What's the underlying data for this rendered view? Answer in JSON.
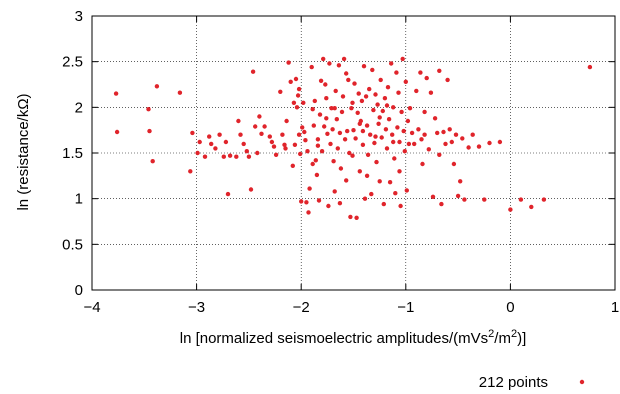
{
  "chart_data": {
    "type": "scatter",
    "title": "",
    "xlabel_prefix": "ln [normalized seismoelectric amplitudes/(mVs",
    "xlabel_sup1": "2",
    "xlabel_mid": "/m",
    "xlabel_sup2": "2",
    "xlabel_suffix": ")]",
    "ylabel": "ln (resistance/kΩ)",
    "xlim": [
      -4,
      1
    ],
    "ylim": [
      0,
      3
    ],
    "xticks": [
      -4,
      -3,
      -2,
      -1,
      0,
      1
    ],
    "yticks": [
      0,
      0.5,
      1,
      1.5,
      2,
      2.5,
      3
    ],
    "xtick_labels": [
      "−4",
      "−3",
      "−2",
      "−1",
      "0",
      "1"
    ],
    "ytick_labels": [
      "0",
      "0.5",
      "1",
      "1.5",
      "2",
      "2.5",
      "3"
    ],
    "grid": "dotted",
    "legend_position": "bottom-right",
    "marker_color": "#e0242b",
    "series": [
      {
        "name": "212 points",
        "points": [
          [
            -3.77,
            2.15
          ],
          [
            -3.76,
            1.73
          ],
          [
            -3.46,
            1.98
          ],
          [
            -3.42,
            1.41
          ],
          [
            -3.38,
            2.23
          ],
          [
            -3.45,
            1.74
          ],
          [
            -3.16,
            2.16
          ],
          [
            -3.06,
            1.3
          ],
          [
            -3.04,
            1.72
          ],
          [
            -2.99,
            1.5
          ],
          [
            -2.92,
            1.46
          ],
          [
            -2.88,
            1.68
          ],
          [
            -2.86,
            1.6
          ],
          [
            -2.82,
            1.55
          ],
          [
            -2.78,
            1.7
          ],
          [
            -2.74,
            1.46
          ],
          [
            -2.72,
            1.62
          ],
          [
            -2.7,
            1.05
          ],
          [
            -2.68,
            1.47
          ],
          [
            -2.62,
            1.46
          ],
          [
            -2.58,
            1.7
          ],
          [
            -2.55,
            1.6
          ],
          [
            -2.5,
            1.46
          ],
          [
            -2.48,
            1.1
          ],
          [
            -2.46,
            2.39
          ],
          [
            -2.44,
            1.79
          ],
          [
            -2.42,
            1.5
          ],
          [
            -2.4,
            1.9
          ],
          [
            -2.38,
            1.71
          ],
          [
            -2.3,
            1.68
          ],
          [
            -2.28,
            1.62
          ],
          [
            -2.26,
            1.57
          ],
          [
            -2.24,
            1.48
          ],
          [
            -2.2,
            2.17
          ],
          [
            -2.18,
            1.7
          ],
          [
            -2.16,
            1.59
          ],
          [
            -2.14,
            1.85
          ],
          [
            -2.12,
            2.49
          ],
          [
            -2.1,
            2.28
          ],
          [
            -2.08,
            1.36
          ],
          [
            -2.07,
            2.05
          ],
          [
            -2.06,
            1.59
          ],
          [
            -2.05,
            2.31
          ],
          [
            -2.04,
            2.0
          ],
          [
            -2.03,
            2.13
          ],
          [
            -2.02,
            1.7
          ],
          [
            -2.01,
            1.49
          ],
          [
            -2.0,
            0.97
          ],
          [
            -1.99,
            1.78
          ],
          [
            -1.98,
            2.05
          ],
          [
            -1.97,
            1.73
          ],
          [
            -1.96,
            1.64
          ],
          [
            -1.95,
            0.96
          ],
          [
            -1.94,
            1.52
          ],
          [
            -1.92,
            1.11
          ],
          [
            -1.9,
            2.44
          ],
          [
            -1.89,
            1.98
          ],
          [
            -1.88,
            1.8
          ],
          [
            -1.87,
            2.07
          ],
          [
            -1.86,
            1.42
          ],
          [
            -1.85,
            1.26
          ],
          [
            -1.84,
            1.65
          ],
          [
            -1.83,
            0.98
          ],
          [
            -1.82,
            1.92
          ],
          [
            -1.81,
            2.29
          ],
          [
            -1.8,
            1.52
          ],
          [
            -1.79,
            2.53
          ],
          [
            -1.78,
            1.79
          ],
          [
            -1.77,
            2.25
          ],
          [
            -1.76,
            2.1
          ],
          [
            -1.75,
            1.71
          ],
          [
            -1.74,
            0.92
          ],
          [
            -1.73,
            2.48
          ],
          [
            -1.72,
            1.6
          ],
          [
            -1.71,
            1.99
          ],
          [
            -1.7,
            1.76
          ],
          [
            -1.69,
            1.41
          ],
          [
            -1.68,
            1.08
          ],
          [
            -1.67,
            2.18
          ],
          [
            -1.66,
            1.87
          ],
          [
            -1.65,
            1.55
          ],
          [
            -1.64,
            2.46
          ],
          [
            -1.63,
            1.72
          ],
          [
            -1.62,
            1.33
          ],
          [
            -1.61,
            1.95
          ],
          [
            -1.6,
            2.12
          ],
          [
            -1.59,
            2.53
          ],
          [
            -1.58,
            1.65
          ],
          [
            -1.57,
            1.2
          ],
          [
            -1.56,
            1.74
          ],
          [
            -1.55,
            2.3
          ],
          [
            -1.54,
            1.5
          ],
          [
            -1.53,
            0.8
          ],
          [
            -1.52,
            1.99
          ],
          [
            -1.51,
            2.05
          ],
          [
            -1.5,
            1.75
          ],
          [
            -1.49,
            2.26
          ],
          [
            -1.48,
            1.66
          ],
          [
            -1.47,
            0.79
          ],
          [
            -1.46,
            1.94
          ],
          [
            -1.45,
            2.15
          ],
          [
            -1.44,
            1.3
          ],
          [
            -1.43,
            1.85
          ],
          [
            -1.42,
            2.07
          ],
          [
            -1.41,
            1.59
          ],
          [
            -1.4,
            2.45
          ],
          [
            -1.39,
            1.0
          ],
          [
            -1.38,
            2.12
          ],
          [
            -1.37,
            1.8
          ],
          [
            -1.36,
            1.48
          ],
          [
            -1.35,
            2.2
          ],
          [
            -1.34,
            1.7
          ],
          [
            -1.33,
            1.05
          ],
          [
            -1.32,
            2.41
          ],
          [
            -1.31,
            1.97
          ],
          [
            -1.3,
            1.61
          ],
          [
            -1.29,
            2.14
          ],
          [
            -1.28,
            1.4
          ],
          [
            -1.27,
            2.03
          ],
          [
            -1.26,
            1.82
          ],
          [
            -1.25,
            1.19
          ],
          [
            -1.24,
            2.3
          ],
          [
            -1.23,
            1.67
          ],
          [
            -1.22,
            1.96
          ],
          [
            -1.21,
            0.94
          ],
          [
            -1.2,
            2.1
          ],
          [
            -1.19,
            1.76
          ],
          [
            -1.18,
            1.55
          ],
          [
            -1.17,
            2.22
          ],
          [
            -1.16,
            1.87
          ],
          [
            -1.15,
            1.18
          ],
          [
            -1.14,
            2.48
          ],
          [
            -1.13,
            1.7
          ],
          [
            -1.12,
            2.0
          ],
          [
            -1.11,
            1.44
          ],
          [
            -1.1,
            1.06
          ],
          [
            -1.09,
            2.38
          ],
          [
            -1.08,
            1.78
          ],
          [
            -1.07,
            2.16
          ],
          [
            -1.06,
            1.62
          ],
          [
            -1.05,
            0.92
          ],
          [
            -1.04,
            1.95
          ],
          [
            -1.03,
            2.53
          ],
          [
            -1.02,
            1.74
          ],
          [
            -1.01,
            1.52
          ],
          [
            -1.0,
            2.28
          ],
          [
            -0.99,
            1.09
          ],
          [
            -0.98,
            1.85
          ],
          [
            -0.96,
            1.99
          ],
          [
            -0.94,
            1.72
          ],
          [
            -0.92,
            1.6
          ],
          [
            -0.9,
            2.18
          ],
          [
            -0.88,
            1.76
          ],
          [
            -0.86,
            2.38
          ],
          [
            -0.84,
            1.38
          ],
          [
            -0.82,
            1.95
          ],
          [
            -0.8,
            2.32
          ],
          [
            -0.78,
            1.54
          ],
          [
            -0.76,
            2.16
          ],
          [
            -0.74,
            1.02
          ],
          [
            -0.72,
            1.88
          ],
          [
            -0.7,
            1.72
          ],
          [
            -0.68,
            2.4
          ],
          [
            -0.66,
            0.94
          ],
          [
            -0.64,
            1.73
          ],
          [
            -0.62,
            1.6
          ],
          [
            -0.6,
            2.3
          ],
          [
            -0.58,
            1.76
          ],
          [
            -0.56,
            1.62
          ],
          [
            -0.54,
            1.38
          ],
          [
            -0.52,
            1.7
          ],
          [
            -0.5,
            1.03
          ],
          [
            -0.48,
            1.19
          ],
          [
            -0.46,
            1.66
          ],
          [
            -0.44,
            0.99
          ],
          [
            -0.4,
            1.56
          ],
          [
            -0.36,
            1.7
          ],
          [
            -0.3,
            1.57
          ],
          [
            -0.25,
            0.99
          ],
          [
            -0.2,
            1.61
          ],
          [
            -0.1,
            1.62
          ],
          [
            0.0,
            0.88
          ],
          [
            0.1,
            0.99
          ],
          [
            0.2,
            0.91
          ],
          [
            0.32,
            0.99
          ],
          [
            0.76,
            2.44
          ],
          [
            -2.6,
            1.85
          ],
          [
            -2.35,
            1.79
          ],
          [
            -2.15,
            1.55
          ],
          [
            -1.93,
            0.85
          ],
          [
            -1.89,
            1.38
          ],
          [
            -1.76,
            1.88
          ],
          [
            -1.68,
            1.99
          ],
          [
            -1.57,
            2.37
          ],
          [
            -1.44,
            1.82
          ],
          [
            -1.37,
            1.25
          ],
          [
            -1.29,
            1.68
          ],
          [
            -1.18,
            2.02
          ],
          [
            -1.06,
            1.3
          ],
          [
            -0.97,
            1.6
          ],
          [
            -0.85,
            1.65
          ],
          [
            -2.97,
            1.62
          ],
          [
            -2.52,
            1.52
          ],
          [
            -1.63,
            0.95
          ],
          [
            -1.41,
            1.74
          ],
          [
            -1.25,
            1.89
          ],
          [
            -1.12,
            1.62
          ],
          [
            -0.82,
            1.7
          ],
          [
            -0.68,
            1.48
          ],
          [
            -2.02,
            2.2
          ],
          [
            -1.84,
            1.58
          ],
          [
            -1.51,
            1.47
          ]
        ]
      }
    ]
  }
}
